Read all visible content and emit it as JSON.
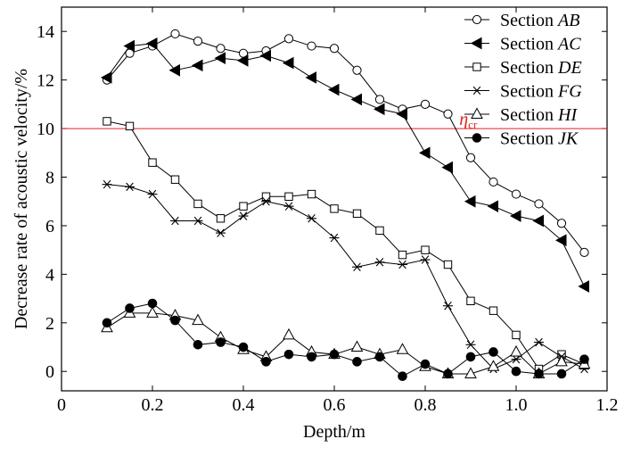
{
  "chart_data": {
    "type": "line",
    "xlabel": "Depth/m",
    "ylabel": "Decrease rate of acoustic velocity/%",
    "xlim": [
      0,
      1.2
    ],
    "ylim": [
      -0.8,
      15
    ],
    "xticks": [
      0,
      0.2,
      0.4,
      0.6,
      0.8,
      1.0,
      1.2
    ],
    "xtick_labels": [
      "0",
      "0.2",
      "0.4",
      "0.6",
      "0.8",
      "1.0",
      "1.2"
    ],
    "yticks": [
      0,
      2,
      4,
      6,
      8,
      10,
      12,
      14
    ],
    "ytick_labels": [
      "0",
      "2",
      "4",
      "6",
      "8",
      "10",
      "12",
      "14"
    ],
    "grid": false,
    "legend_position": "top-right",
    "x": [
      0.1,
      0.15,
      0.2,
      0.25,
      0.3,
      0.35,
      0.4,
      0.45,
      0.5,
      0.55,
      0.6,
      0.65,
      0.7,
      0.75,
      0.8,
      0.85,
      0.9,
      0.95,
      1.0,
      1.05,
      1.1,
      1.15
    ],
    "series": [
      {
        "name": "Section AB",
        "name_prefix": "Section ",
        "name_italic": "AB",
        "marker": "circle-open",
        "color": "#000000",
        "values": [
          12.0,
          13.1,
          13.4,
          13.9,
          13.6,
          13.3,
          13.1,
          13.2,
          13.7,
          13.4,
          13.3,
          12.4,
          11.2,
          10.8,
          11.0,
          10.6,
          8.8,
          7.8,
          7.3,
          6.9,
          6.1,
          4.9
        ]
      },
      {
        "name": "Section AC",
        "name_prefix": "Section ",
        "name_italic": "AC",
        "marker": "triangle-left-filled",
        "color": "#000000",
        "values": [
          12.1,
          13.4,
          13.5,
          12.4,
          12.6,
          12.9,
          12.8,
          13.0,
          12.7,
          12.1,
          11.6,
          11.2,
          10.8,
          10.6,
          9.0,
          8.4,
          7.0,
          6.8,
          6.4,
          6.2,
          5.4,
          3.5
        ]
      },
      {
        "name": "Section DE",
        "name_prefix": "Section ",
        "name_italic": "DE",
        "marker": "square-open",
        "color": "#000000",
        "values": [
          10.3,
          10.1,
          8.6,
          7.9,
          6.9,
          6.3,
          6.8,
          7.2,
          7.2,
          7.3,
          6.7,
          6.5,
          5.8,
          4.8,
          5.0,
          4.4,
          2.9,
          2.5,
          1.5,
          0.1,
          0.7,
          0.3
        ]
      },
      {
        "name": "Section FG",
        "name_prefix": "Section ",
        "name_italic": "FG",
        "marker": "star",
        "color": "#000000",
        "values": [
          7.7,
          7.6,
          7.3,
          6.2,
          6.2,
          5.7,
          6.4,
          7.0,
          6.8,
          6.3,
          5.5,
          4.3,
          4.5,
          4.4,
          4.6,
          2.7,
          1.1,
          0.1,
          0.5,
          1.2,
          0.6,
          0.1
        ]
      },
      {
        "name": "Section HI",
        "name_prefix": "Section ",
        "name_italic": "HI",
        "marker": "triangle-up-open",
        "color": "#000000",
        "values": [
          1.8,
          2.4,
          2.4,
          2.3,
          2.1,
          1.4,
          0.9,
          0.6,
          1.5,
          0.8,
          0.7,
          1.0,
          0.7,
          0.9,
          0.2,
          -0.1,
          -0.1,
          0.2,
          0.8,
          -0.1,
          0.4,
          0.3
        ]
      },
      {
        "name": "Section JK",
        "name_prefix": "Section ",
        "name_italic": "JK",
        "marker": "circle-filled",
        "color": "#000000",
        "values": [
          2.0,
          2.6,
          2.8,
          2.1,
          1.1,
          1.2,
          1.0,
          0.4,
          0.7,
          0.6,
          0.7,
          0.4,
          0.6,
          -0.2,
          0.3,
          -0.1,
          0.6,
          0.8,
          0.0,
          -0.1,
          -0.1,
          0.5
        ]
      }
    ],
    "reference_lines": [
      {
        "axis": "y",
        "value": 10,
        "color": "#e02020",
        "label_symbol": "η",
        "label_subscript": "cr"
      }
    ]
  }
}
